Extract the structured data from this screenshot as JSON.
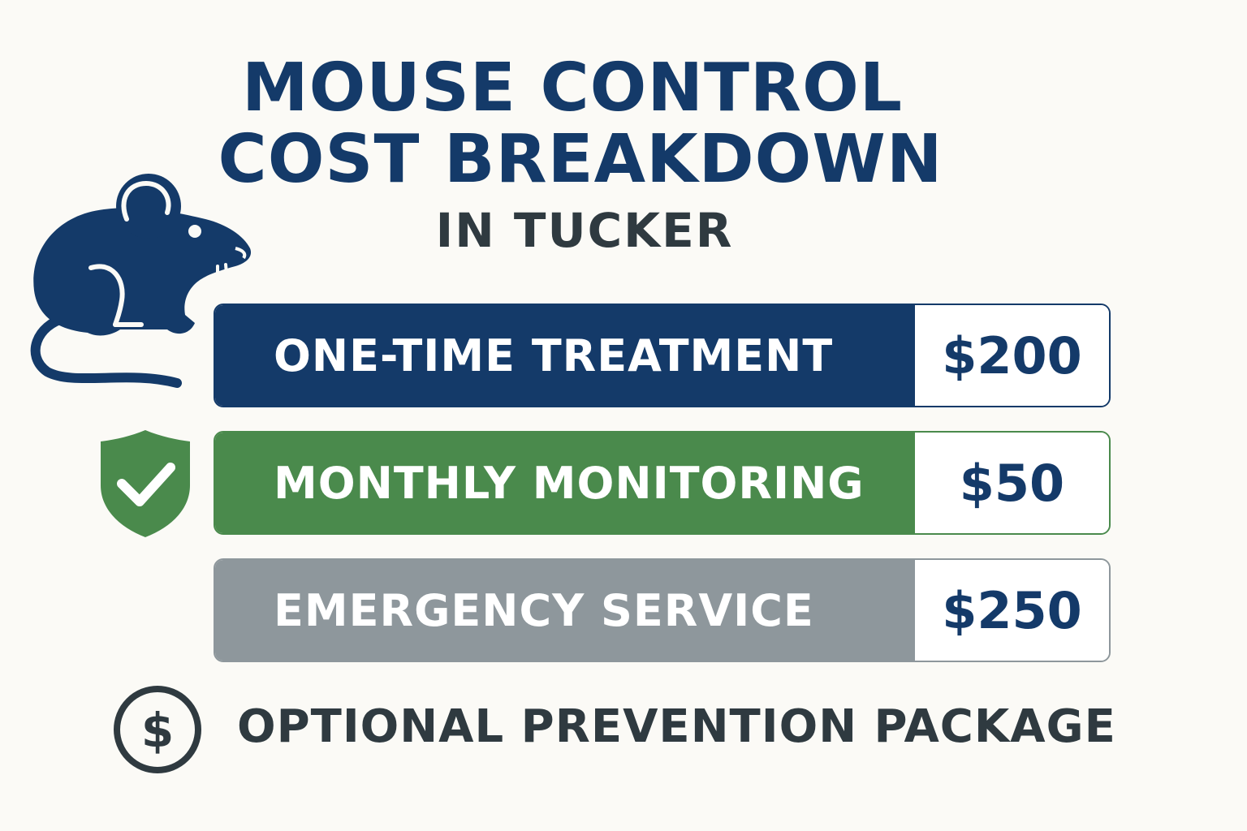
{
  "header": {
    "title_line1": "MOUSE CONTROL",
    "title_line2": "COST BREAKDOWN",
    "subtitle": "IN TUCKER"
  },
  "icons": {
    "mouse": "mouse-icon",
    "shield": "shield-check-icon",
    "dollar": "dollar-circle-icon"
  },
  "colors": {
    "navy": "#143a69",
    "green": "#4a8a4c",
    "gray": "#8e979c",
    "dark_text": "#2f3a40",
    "background": "#fbfaf6"
  },
  "services": [
    {
      "label": "ONE-TIME TREATMENT",
      "price": "$200"
    },
    {
      "label": "MONTHLY MONITORING",
      "price": "$50"
    },
    {
      "label": "EMERGENCY SERVICE",
      "price": "$250"
    }
  ],
  "footer": {
    "label": "OPTIONAL PREVENTION PACKAGE"
  }
}
